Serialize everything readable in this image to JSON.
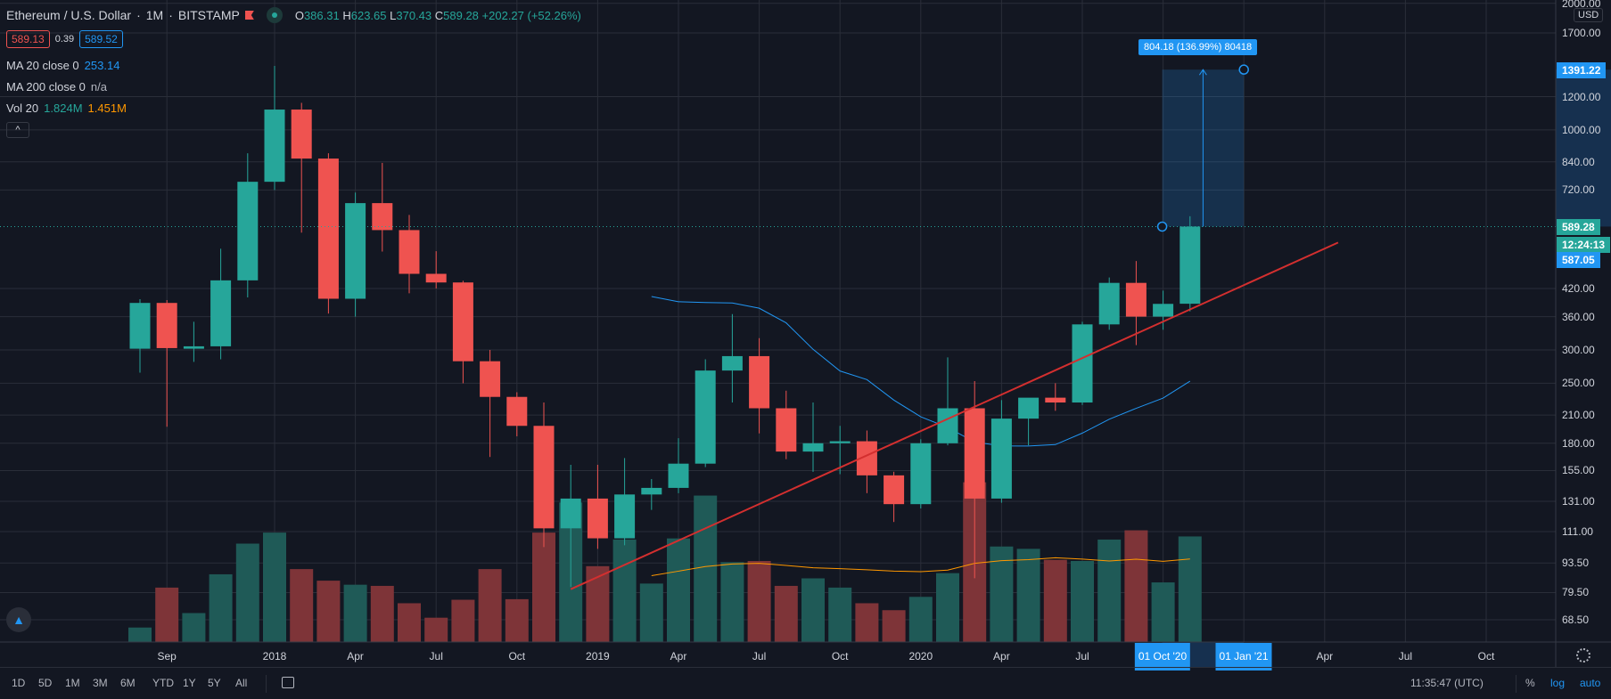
{
  "header": {
    "title": "Ethereum / U.S. Dollar",
    "interval": "1M",
    "exchange": "BITSTAMP",
    "ohlc": {
      "o_label": "O",
      "o": "386.31",
      "h_label": "H",
      "h": "623.65",
      "l_label": "L",
      "l": "370.43",
      "c_label": "C",
      "c": "589.28",
      "change": "+202.27 (+52.26%)"
    },
    "bid": "589.13",
    "spread": "0.39",
    "ask": "589.52"
  },
  "indicators": {
    "ma20_label": "MA 20 close 0",
    "ma20_value": "253.14",
    "ma200_label": "MA 200 close 0",
    "ma200_value": "n/a",
    "vol_label": "Vol 20",
    "vol_value": "1.824M",
    "vol_ma_value": "1.451M",
    "collapse": "^"
  },
  "colors": {
    "up": "#26a69a",
    "down": "#ef5350",
    "ma": "#2196f3",
    "volma": "#ff9800",
    "trend": "#d32f2f",
    "bg": "#131722"
  },
  "measure": {
    "label": "804.18 (136.99%) 80418",
    "from": 589.28,
    "to": 1391.22,
    "from_month": 38,
    "to_month": 41
  },
  "trendline": {
    "from": {
      "month": 16,
      "price": 81
    },
    "to": {
      "month": 44.5,
      "price": 540
    }
  },
  "price_axis": {
    "currency": "USD",
    "ticks": [
      "2000.00",
      "1700.00",
      "1200.00",
      "1000.00",
      "840.00",
      "720.00",
      "420.00",
      "360.00",
      "300.00",
      "250.00",
      "210.00",
      "180.00",
      "155.00",
      "131.00",
      "111.00",
      "93.50",
      "79.50",
      "68.50"
    ],
    "measure_top": "1391.22",
    "last_price": "589.28",
    "countdown": "12:24:13",
    "level": "587.05"
  },
  "time_axis": {
    "labels": [
      {
        "m": 1,
        "t": "Sep"
      },
      {
        "m": 5,
        "t": "2018"
      },
      {
        "m": 8,
        "t": "Apr"
      },
      {
        "m": 11,
        "t": "Jul"
      },
      {
        "m": 14,
        "t": "Oct"
      },
      {
        "m": 17,
        "t": "2019"
      },
      {
        "m": 20,
        "t": "Apr"
      },
      {
        "m": 23,
        "t": "Jul"
      },
      {
        "m": 26,
        "t": "Oct"
      },
      {
        "m": 29,
        "t": "2020"
      },
      {
        "m": 32,
        "t": "Apr"
      },
      {
        "m": 35,
        "t": "Jul"
      },
      {
        "m": 44,
        "t": "Apr"
      },
      {
        "m": 47,
        "t": "Jul"
      },
      {
        "m": 50,
        "t": "Oct"
      }
    ],
    "highlight_from": "01 Oct '20",
    "highlight_to": "01 Jan '21"
  },
  "chart_data": {
    "type": "candlestick",
    "start": "Aug 2017",
    "interval": "1M",
    "scale": "log",
    "ohlc": [
      [
        302,
        396,
        265,
        388
      ],
      [
        388,
        394,
        197,
        303
      ],
      [
        302,
        350,
        281,
        306
      ],
      [
        306,
        522,
        285,
        439
      ],
      [
        439,
        880,
        400,
        753
      ],
      [
        753,
        1420,
        720,
        1118
      ],
      [
        1118,
        1160,
        570,
        855
      ],
      [
        855,
        880,
        366,
        397
      ],
      [
        397,
        710,
        360,
        670
      ],
      [
        670,
        835,
        514,
        578
      ],
      [
        578,
        628,
        409,
        455
      ],
      [
        455,
        515,
        420,
        434
      ],
      [
        434,
        438,
        250,
        282
      ],
      [
        282,
        300,
        167,
        232
      ],
      [
        232,
        238,
        187,
        198
      ],
      [
        198,
        225,
        102,
        113
      ],
      [
        113,
        160,
        82,
        133
      ],
      [
        133,
        160,
        101,
        107
      ],
      [
        107,
        166,
        103,
        136
      ],
      [
        136,
        148,
        125,
        141
      ],
      [
        141,
        185,
        137,
        161
      ],
      [
        161,
        285,
        158,
        268
      ],
      [
        268,
        365,
        225,
        290
      ],
      [
        290,
        320,
        190,
        218
      ],
      [
        218,
        240,
        165,
        172
      ],
      [
        172,
        225,
        154,
        180
      ],
      [
        180,
        198,
        152,
        182
      ],
      [
        182,
        193,
        137,
        151
      ],
      [
        151,
        154,
        117,
        129
      ],
      [
        129,
        184,
        126,
        180
      ],
      [
        180,
        288,
        178,
        218
      ],
      [
        218,
        253,
        86,
        133
      ],
      [
        133,
        228,
        130,
        206
      ],
      [
        206,
        227,
        178,
        231
      ],
      [
        231,
        250,
        215,
        225
      ],
      [
        225,
        350,
        222,
        345
      ],
      [
        345,
        446,
        335,
        433
      ],
      [
        433,
        488,
        308,
        360
      ],
      [
        360,
        415,
        335,
        386
      ],
      [
        386.31,
        623.65,
        370.43,
        589.28
      ]
    ],
    "volume_m": [
      0.25,
      0.94,
      0.5,
      1.17,
      1.7,
      1.89,
      1.26,
      1.06,
      0.99,
      0.97,
      0.67,
      0.42,
      0.73,
      1.26,
      0.74,
      1.89,
      2.41,
      1.31,
      1.77,
      1.01,
      1.79,
      2.53,
      1.38,
      1.4,
      0.97,
      1.1,
      0.94,
      0.67,
      0.55,
      0.78,
      1.19,
      2.76,
      1.65,
      1.61,
      1.42,
      1.4,
      1.77,
      1.93,
      1.03,
      1.824
    ]
  },
  "toolbar": {
    "ranges": [
      "1D",
      "5D",
      "1M",
      "3M",
      "6M",
      "YTD",
      "1Y",
      "5Y",
      "All"
    ],
    "clock": "11:35:47 (UTC)",
    "percent": "%",
    "log": "log",
    "auto": "auto"
  }
}
